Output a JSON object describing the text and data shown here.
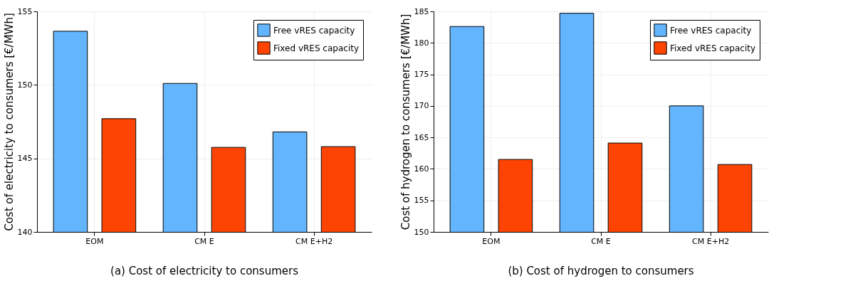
{
  "chart_data": [
    {
      "type": "bar",
      "title": "(a) Cost of electricity to consumers",
      "ylabel": "Cost of electricity to consumers [€/MWh]",
      "categories": [
        "EOM",
        "CM E",
        "CM E+H2"
      ],
      "series": [
        {
          "name": "Free vRES capacity",
          "color": "#63b5fe",
          "values": [
            153.65,
            150.1,
            146.8
          ]
        },
        {
          "name": "Fixed vRES capacity",
          "color": "#fe4402",
          "values": [
            147.7,
            145.75,
            145.8
          ]
        }
      ],
      "ylim": [
        140,
        155
      ],
      "yticks": [
        140,
        145,
        150,
        155
      ],
      "grid": true,
      "legend": "top right"
    },
    {
      "type": "bar",
      "title": "(b) Cost of hydrogen to consumers",
      "ylabel": "Cost of hydrogen to consumers [€/MWh]",
      "categories": [
        "EOM",
        "CM E",
        "CM E+H2"
      ],
      "series": [
        {
          "name": "Free vRES capacity",
          "color": "#63b5fe",
          "values": [
            182.6,
            184.7,
            170.0
          ]
        },
        {
          "name": "Fixed vRES capacity",
          "color": "#fe4402",
          "values": [
            161.5,
            164.1,
            160.7
          ]
        }
      ],
      "ylim": [
        150,
        185
      ],
      "yticks": [
        150,
        155,
        160,
        165,
        170,
        175,
        180,
        185
      ],
      "grid": true,
      "legend": "top right"
    }
  ]
}
